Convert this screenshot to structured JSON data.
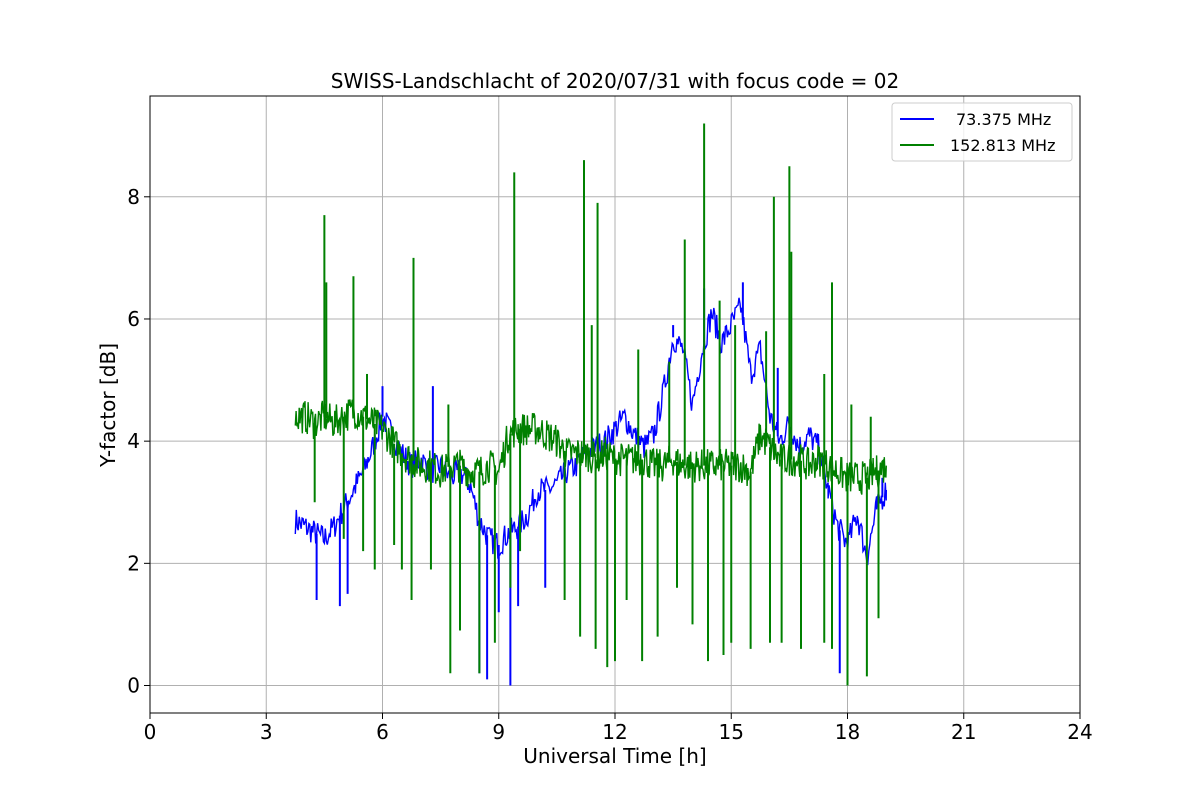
{
  "chart_data": {
    "type": "line",
    "title": "SWISS-Landschlacht of 2020/07/31 with focus code = 02",
    "xlabel": "Universal Time [h]",
    "ylabel": "Y-factor [dB]",
    "xlim": [
      0,
      24
    ],
    "ylim": [
      -0.45,
      9.65
    ],
    "xticks": [
      0,
      3,
      6,
      9,
      12,
      15,
      18,
      21,
      24
    ],
    "xtick_labels": [
      "0",
      "3",
      "6",
      "9",
      "12",
      "15",
      "18",
      "21",
      "24"
    ],
    "yticks": [
      0,
      2,
      4,
      6,
      8
    ],
    "ytick_labels": [
      "0",
      "2",
      "4",
      "6",
      "8"
    ],
    "grid": true,
    "legend_position": "top-right",
    "series": [
      {
        "name": "73.375 MHz",
        "color": "#0000ff",
        "x": [
          3.75,
          4.0,
          4.25,
          4.5,
          4.75,
          5.0,
          5.25,
          5.5,
          5.75,
          6.0,
          6.25,
          6.5,
          6.75,
          7.0,
          7.25,
          7.5,
          7.75,
          8.0,
          8.25,
          8.5,
          8.75,
          9.0,
          9.25,
          9.5,
          9.75,
          10.0,
          10.25,
          10.5,
          10.75,
          11.0,
          11.25,
          11.5,
          11.75,
          12.0,
          12.25,
          12.5,
          12.75,
          13.0,
          13.25,
          13.5,
          13.75,
          14.0,
          14.25,
          14.5,
          14.75,
          15.0,
          15.25,
          15.5,
          15.75,
          16.0,
          16.25,
          16.5,
          16.75,
          17.0,
          17.25,
          17.5,
          17.75,
          18.0,
          18.25,
          18.5,
          18.75,
          19.0
        ],
        "y": [
          2.7,
          2.6,
          2.5,
          2.4,
          2.6,
          2.9,
          3.2,
          3.5,
          3.9,
          4.4,
          4.1,
          3.8,
          3.6,
          3.7,
          3.5,
          3.6,
          3.4,
          3.5,
          3.3,
          2.7,
          2.4,
          2.3,
          2.5,
          2.6,
          2.8,
          3.2,
          3.2,
          3.3,
          3.5,
          3.6,
          3.8,
          3.9,
          4.0,
          4.2,
          4.4,
          4.1,
          3.9,
          4.1,
          4.8,
          5.7,
          5.5,
          4.6,
          5.5,
          6.1,
          5.6,
          5.9,
          6.2,
          5.1,
          5.5,
          4.4,
          4.0,
          4.3,
          3.9,
          4.1,
          3.9,
          3.2,
          2.6,
          2.3,
          2.8,
          2.1,
          2.9,
          3.2
        ]
      },
      {
        "name": "152.813 MHz",
        "color": "#008000",
        "x": [
          3.75,
          4.0,
          4.25,
          4.5,
          4.75,
          5.0,
          5.25,
          5.5,
          5.75,
          6.0,
          6.25,
          6.5,
          6.75,
          7.0,
          7.25,
          7.5,
          7.75,
          8.0,
          8.25,
          8.5,
          8.75,
          9.0,
          9.25,
          9.5,
          9.75,
          10.0,
          10.25,
          10.5,
          10.75,
          11.0,
          11.25,
          11.5,
          11.75,
          12.0,
          12.25,
          12.5,
          12.75,
          13.0,
          13.25,
          13.5,
          13.75,
          14.0,
          14.25,
          14.5,
          14.75,
          15.0,
          15.25,
          15.5,
          15.75,
          16.0,
          16.25,
          16.5,
          16.75,
          17.0,
          17.25,
          17.5,
          17.75,
          18.0,
          18.25,
          18.5,
          18.75,
          19.0
        ],
        "y": [
          4.4,
          4.4,
          4.3,
          4.4,
          4.3,
          4.4,
          4.5,
          4.4,
          4.3,
          4.2,
          4.0,
          3.8,
          3.7,
          3.6,
          3.6,
          3.5,
          3.6,
          3.6,
          3.5,
          3.5,
          3.6,
          3.5,
          4.1,
          4.2,
          4.2,
          4.2,
          4.1,
          4.0,
          3.8,
          3.8,
          3.8,
          3.7,
          3.8,
          3.7,
          3.7,
          3.7,
          3.7,
          3.6,
          3.6,
          3.7,
          3.6,
          3.6,
          3.6,
          3.6,
          3.6,
          3.6,
          3.6,
          3.5,
          4.1,
          3.9,
          3.7,
          3.7,
          3.7,
          3.6,
          3.7,
          3.6,
          3.5,
          3.4,
          3.4,
          3.4,
          3.5,
          3.6
        ],
        "spikes_up": [
          [
            4.5,
            7.7
          ],
          [
            4.55,
            6.6
          ],
          [
            5.25,
            6.7
          ],
          [
            5.6,
            5.1
          ],
          [
            6.8,
            7.0
          ],
          [
            7.7,
            4.6
          ],
          [
            9.4,
            8.4
          ],
          [
            11.2,
            8.6
          ],
          [
            11.4,
            5.9
          ],
          [
            11.55,
            7.9
          ],
          [
            12.6,
            5.5
          ],
          [
            13.4,
            5.3
          ],
          [
            13.8,
            7.3
          ],
          [
            14.3,
            9.2
          ],
          [
            14.7,
            6.3
          ],
          [
            15.1,
            5.9
          ],
          [
            15.9,
            5.8
          ],
          [
            16.1,
            8.0
          ],
          [
            16.5,
            8.5
          ],
          [
            16.55,
            7.1
          ],
          [
            17.4,
            5.1
          ],
          [
            17.6,
            6.6
          ],
          [
            18.1,
            4.6
          ],
          [
            18.6,
            4.4
          ]
        ],
        "spikes_down": [
          [
            4.25,
            3.0
          ],
          [
            5.0,
            2.4
          ],
          [
            5.5,
            2.2
          ],
          [
            5.8,
            1.9
          ],
          [
            6.3,
            2.3
          ],
          [
            6.5,
            1.9
          ],
          [
            6.75,
            1.4
          ],
          [
            7.25,
            1.9
          ],
          [
            7.75,
            0.2
          ],
          [
            8.0,
            0.9
          ],
          [
            8.5,
            0.2
          ],
          [
            8.9,
            0.7
          ],
          [
            9.3,
            1.6
          ],
          [
            9.55,
            2.2
          ],
          [
            10.7,
            1.4
          ],
          [
            11.1,
            0.8
          ],
          [
            11.5,
            0.6
          ],
          [
            11.8,
            0.3
          ],
          [
            12.0,
            0.4
          ],
          [
            12.3,
            1.4
          ],
          [
            12.7,
            0.4
          ],
          [
            13.1,
            0.8
          ],
          [
            13.6,
            1.6
          ],
          [
            14.0,
            1.0
          ],
          [
            14.4,
            0.4
          ],
          [
            14.8,
            0.5
          ],
          [
            15.0,
            0.7
          ],
          [
            15.5,
            0.6
          ],
          [
            16.0,
            0.7
          ],
          [
            16.3,
            0.7
          ],
          [
            16.8,
            0.6
          ],
          [
            17.4,
            0.7
          ],
          [
            17.6,
            0.6
          ],
          [
            18.0,
            0.0
          ],
          [
            18.5,
            0.15
          ],
          [
            18.8,
            1.1
          ]
        ]
      }
    ],
    "blue_spikes_down": [
      [
        4.3,
        1.4
      ],
      [
        4.9,
        1.3
      ],
      [
        5.1,
        1.5
      ],
      [
        8.5,
        0.2
      ],
      [
        8.7,
        0.1
      ],
      [
        9.0,
        1.2
      ],
      [
        9.3,
        0.0
      ],
      [
        9.5,
        1.3
      ],
      [
        10.2,
        1.6
      ],
      [
        17.6,
        0.8
      ],
      [
        17.8,
        0.2
      ]
    ],
    "blue_spikes_up": [
      [
        6.0,
        4.9
      ],
      [
        7.3,
        4.9
      ],
      [
        13.5,
        5.9
      ],
      [
        14.3,
        6.5
      ],
      [
        15.3,
        6.6
      ],
      [
        16.2,
        5.2
      ],
      [
        18.9,
        3.4
      ]
    ]
  }
}
